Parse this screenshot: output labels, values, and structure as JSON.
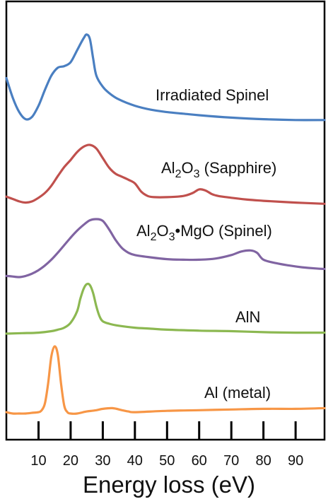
{
  "chart_data": {
    "type": "line",
    "xlabel": "Energy loss (eV)",
    "ylabel": "",
    "x_ticks": [
      10,
      20,
      30,
      40,
      50,
      60,
      70,
      80,
      90
    ],
    "xlim": [
      0,
      99
    ],
    "grid": false,
    "legend": "inline labels",
    "series": [
      {
        "name": "Irradiated Spinel",
        "label_parts": [
          {
            "t": "Irradiated Spinel",
            "sub": false
          }
        ],
        "color": "#4a7fc1",
        "x": [
          0,
          2,
          4,
          6,
          8,
          10,
          12,
          14,
          16,
          18,
          20,
          22,
          24,
          25,
          26,
          27,
          28,
          30,
          32,
          35,
          40,
          45,
          50,
          55,
          60,
          70,
          80,
          90,
          99
        ],
        "y": [
          0.55,
          0.3,
          0.12,
          0.03,
          0.06,
          0.2,
          0.4,
          0.58,
          0.68,
          0.7,
          0.75,
          0.9,
          1.05,
          1.1,
          1.04,
          0.8,
          0.58,
          0.44,
          0.36,
          0.28,
          0.2,
          0.15,
          0.12,
          0.1,
          0.08,
          0.05,
          0.03,
          0.02,
          0.02
        ]
      },
      {
        "name": "Al2O3 (Sapphire)",
        "label_parts": [
          {
            "t": "Al",
            "sub": false
          },
          {
            "t": "2",
            "sub": true
          },
          {
            "t": "O",
            "sub": false
          },
          {
            "t": "3",
            "sub": true
          },
          {
            "t": " (Sapphire)",
            "sub": false
          }
        ],
        "color": "#c0504d",
        "x": [
          0,
          2,
          4,
          6,
          8,
          10,
          12,
          14,
          16,
          18,
          20,
          22,
          24,
          26,
          28,
          30,
          32,
          34,
          36,
          38,
          40,
          42,
          44,
          46,
          50,
          55,
          58,
          60,
          62,
          64,
          66,
          70,
          75,
          80,
          90,
          99
        ],
        "y": [
          0.14,
          0.1,
          0.06,
          0.04,
          0.06,
          0.12,
          0.2,
          0.32,
          0.48,
          0.63,
          0.75,
          0.88,
          0.97,
          1.0,
          0.94,
          0.78,
          0.62,
          0.52,
          0.47,
          0.42,
          0.36,
          0.22,
          0.15,
          0.13,
          0.13,
          0.15,
          0.2,
          0.26,
          0.24,
          0.18,
          0.15,
          0.12,
          0.09,
          0.07,
          0.04,
          0.02
        ]
      },
      {
        "name": "Al2O3•MgO (Spinel)",
        "label_parts": [
          {
            "t": "Al",
            "sub": false
          },
          {
            "t": "2",
            "sub": true
          },
          {
            "t": "O",
            "sub": false
          },
          {
            "t": "3",
            "sub": true
          },
          {
            "t": "•MgO (Spinel)",
            "sub": false
          }
        ],
        "color": "#8064a2",
        "x": [
          0,
          2,
          4,
          6,
          8,
          10,
          12,
          14,
          16,
          18,
          20,
          22,
          24,
          26,
          28,
          30,
          32,
          34,
          36,
          38,
          40,
          45,
          50,
          55,
          60,
          65,
          70,
          73,
          76,
          78,
          80,
          84,
          88,
          92,
          96,
          99
        ],
        "y": [
          0.02,
          0.01,
          0.0,
          0.02,
          0.06,
          0.12,
          0.2,
          0.3,
          0.42,
          0.55,
          0.68,
          0.8,
          0.9,
          0.98,
          1.0,
          0.97,
          0.82,
          0.64,
          0.5,
          0.42,
          0.38,
          0.34,
          0.31,
          0.3,
          0.3,
          0.32,
          0.38,
          0.44,
          0.46,
          0.42,
          0.3,
          0.24,
          0.2,
          0.17,
          0.15,
          0.14
        ]
      },
      {
        "name": "AlN",
        "label_parts": [
          {
            "t": "AlN",
            "sub": false
          }
        ],
        "color": "#8cb851",
        "x": [
          0,
          5,
          10,
          14,
          16,
          18,
          20,
          22,
          23,
          24,
          25,
          26,
          27,
          28,
          29,
          30,
          32,
          35,
          40,
          45,
          50,
          60,
          70,
          80,
          90,
          99
        ],
        "y": [
          0.0,
          0.01,
          0.02,
          0.05,
          0.08,
          0.12,
          0.22,
          0.45,
          0.7,
          0.9,
          1.0,
          0.98,
          0.82,
          0.55,
          0.35,
          0.25,
          0.2,
          0.16,
          0.12,
          0.1,
          0.08,
          0.06,
          0.05,
          0.03,
          0.02,
          0.02
        ]
      },
      {
        "name": "Al (metal)",
        "label_parts": [
          {
            "t": "Al (metal)",
            "sub": false
          }
        ],
        "color": "#f79646",
        "x": [
          0,
          2,
          4,
          6,
          8,
          10,
          11,
          12,
          13,
          14,
          15,
          16,
          17,
          18,
          19,
          20,
          22,
          25,
          28,
          30,
          33,
          36,
          38,
          40,
          50,
          60,
          70,
          80,
          90,
          99
        ],
        "y": [
          0.02,
          0.0,
          0.0,
          0.0,
          0.01,
          0.02,
          0.05,
          0.15,
          0.45,
          0.85,
          1.0,
          0.88,
          0.45,
          0.12,
          0.02,
          0.0,
          0.0,
          0.03,
          0.05,
          0.07,
          0.08,
          0.05,
          0.03,
          0.02,
          0.04,
          0.05,
          0.06,
          0.07,
          0.07,
          0.08
        ]
      }
    ]
  }
}
